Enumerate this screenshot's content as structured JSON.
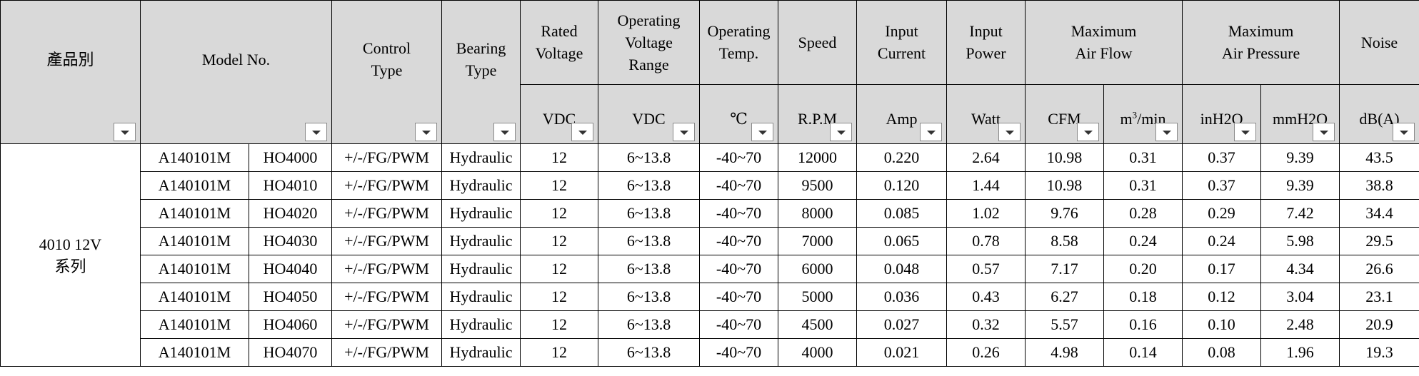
{
  "headers": {
    "series": "產品別",
    "model": "Model No.",
    "control": [
      "Control",
      "Type"
    ],
    "bearing": [
      "Bearing",
      "Type"
    ],
    "rated": [
      "Rated",
      "Voltage"
    ],
    "oprange": [
      "Operating",
      "Voltage",
      "Range"
    ],
    "optemp": [
      "Operating",
      "Temp."
    ],
    "speed": "Speed",
    "current": [
      "Input",
      "Current"
    ],
    "power": [
      "Input",
      "Power"
    ],
    "airflow": [
      "Maximum",
      "Air Flow"
    ],
    "pressure": [
      "Maximum",
      "Air Pressure"
    ],
    "noise": "Noise"
  },
  "units": {
    "rated": "VDC",
    "oprange": "VDC",
    "optemp": "℃",
    "speed": "R.P.M",
    "current": "Amp",
    "power": "Watt",
    "cfm": "CFM",
    "m3": "m",
    "m3_sup": "3",
    "m3_tail": "/min",
    "inh2o": "inH2O",
    "mmh2o": "mmH2O",
    "noise": "dB(A)"
  },
  "series_label": [
    "4010 12V",
    "系列"
  ],
  "rows": [
    {
      "part": "A140101M",
      "model": "HO4000",
      "control": "+/-/FG/PWM",
      "bearing": "Hydraulic",
      "rated": "12",
      "range": "6~13.8",
      "temp": "-40~70",
      "speed": "12000",
      "current": "0.220",
      "power": "2.64",
      "cfm": "10.98",
      "m3": "0.31",
      "inh2o": "0.37",
      "mmh2o": "9.39",
      "noise": "43.5"
    },
    {
      "part": "A140101M",
      "model": "HO4010",
      "control": "+/-/FG/PWM",
      "bearing": "Hydraulic",
      "rated": "12",
      "range": "6~13.8",
      "temp": "-40~70",
      "speed": "9500",
      "current": "0.120",
      "power": "1.44",
      "cfm": "10.98",
      "m3": "0.31",
      "inh2o": "0.37",
      "mmh2o": "9.39",
      "noise": "38.8"
    },
    {
      "part": "A140101M",
      "model": "HO4020",
      "control": "+/-/FG/PWM",
      "bearing": "Hydraulic",
      "rated": "12",
      "range": "6~13.8",
      "temp": "-40~70",
      "speed": "8000",
      "current": "0.085",
      "power": "1.02",
      "cfm": "9.76",
      "m3": "0.28",
      "inh2o": "0.29",
      "mmh2o": "7.42",
      "noise": "34.4"
    },
    {
      "part": "A140101M",
      "model": "HO4030",
      "control": "+/-/FG/PWM",
      "bearing": "Hydraulic",
      "rated": "12",
      "range": "6~13.8",
      "temp": "-40~70",
      "speed": "7000",
      "current": "0.065",
      "power": "0.78",
      "cfm": "8.58",
      "m3": "0.24",
      "inh2o": "0.24",
      "mmh2o": "5.98",
      "noise": "29.5"
    },
    {
      "part": "A140101M",
      "model": "HO4040",
      "control": "+/-/FG/PWM",
      "bearing": "Hydraulic",
      "rated": "12",
      "range": "6~13.8",
      "temp": "-40~70",
      "speed": "6000",
      "current": "0.048",
      "power": "0.57",
      "cfm": "7.17",
      "m3": "0.20",
      "inh2o": "0.17",
      "mmh2o": "4.34",
      "noise": "26.6"
    },
    {
      "part": "A140101M",
      "model": "HO4050",
      "control": "+/-/FG/PWM",
      "bearing": "Hydraulic",
      "rated": "12",
      "range": "6~13.8",
      "temp": "-40~70",
      "speed": "5000",
      "current": "0.036",
      "power": "0.43",
      "cfm": "6.27",
      "m3": "0.18",
      "inh2o": "0.12",
      "mmh2o": "3.04",
      "noise": "23.1"
    },
    {
      "part": "A140101M",
      "model": "HO4060",
      "control": "+/-/FG/PWM",
      "bearing": "Hydraulic",
      "rated": "12",
      "range": "6~13.8",
      "temp": "-40~70",
      "speed": "4500",
      "current": "0.027",
      "power": "0.32",
      "cfm": "5.57",
      "m3": "0.16",
      "inh2o": "0.10",
      "mmh2o": "2.48",
      "noise": "20.9"
    },
    {
      "part": "A140101M",
      "model": "HO4070",
      "control": "+/-/FG/PWM",
      "bearing": "Hydraulic",
      "rated": "12",
      "range": "6~13.8",
      "temp": "-40~70",
      "speed": "4000",
      "current": "0.021",
      "power": "0.26",
      "cfm": "4.98",
      "m3": "0.14",
      "inh2o": "0.08",
      "mmh2o": "1.96",
      "noise": "19.3"
    }
  ]
}
